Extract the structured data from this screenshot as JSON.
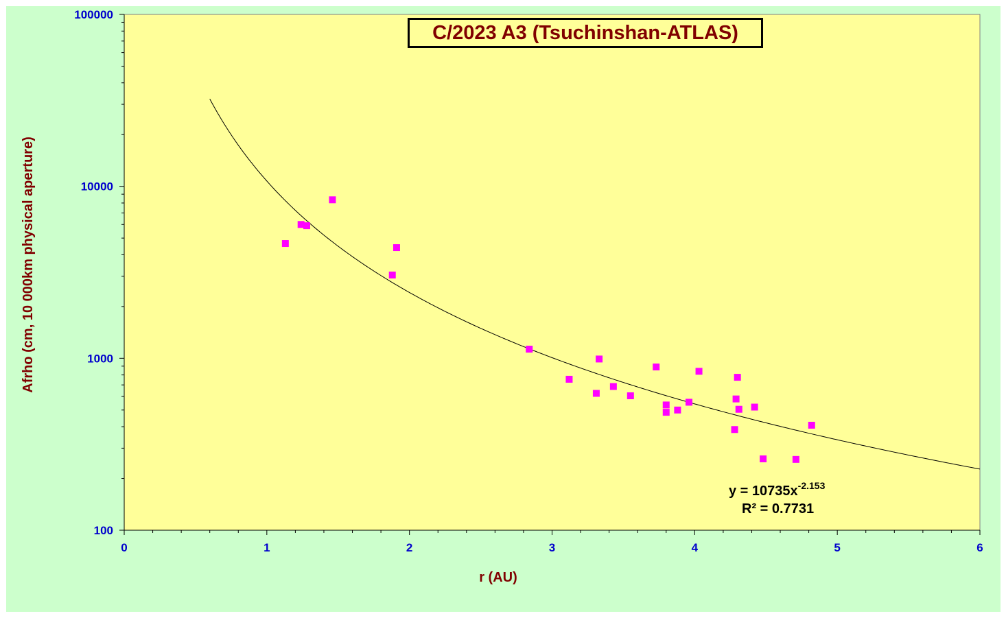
{
  "chart_data": {
    "type": "scatter",
    "title": "C/2023 A3 (Tsuchinshan-ATLAS)",
    "xlabel": "r (AU)",
    "ylabel": "Afrho (cm, 10 000km physical  aperture)",
    "xlim": [
      0,
      6
    ],
    "ylim": [
      100,
      100000
    ],
    "y_scale": "log",
    "x_ticks": [
      "0",
      "1",
      "2",
      "3",
      "4",
      "5",
      "6"
    ],
    "y_ticks": [
      "100",
      "1000",
      "10000",
      "100000"
    ],
    "grid": false,
    "series": [
      {
        "points": [
          [
            1.13,
            4650
          ],
          [
            1.24,
            6000
          ],
          [
            1.28,
            5900
          ],
          [
            1.46,
            8350
          ],
          [
            1.88,
            3050
          ],
          [
            1.91,
            4400
          ],
          [
            2.84,
            1130
          ],
          [
            3.12,
            755
          ],
          [
            3.31,
            625
          ],
          [
            3.33,
            990
          ],
          [
            3.43,
            685
          ],
          [
            3.55,
            605
          ],
          [
            3.73,
            890
          ],
          [
            3.8,
            535
          ],
          [
            3.8,
            485
          ],
          [
            3.88,
            500
          ],
          [
            3.96,
            555
          ],
          [
            4.03,
            840
          ],
          [
            4.28,
            385
          ],
          [
            4.29,
            580
          ],
          [
            4.3,
            775
          ],
          [
            4.31,
            505
          ],
          [
            4.42,
            520
          ],
          [
            4.48,
            260
          ],
          [
            4.71,
            258
          ],
          [
            4.82,
            408
          ]
        ]
      }
    ],
    "trendline": {
      "type": "power",
      "coefficient": 10735,
      "exponent": -2.153,
      "x_start": 0.6,
      "x_end": 6
    },
    "equation": {
      "main": "y = 10735x",
      "exponent": "-2.153",
      "r2": "R² = 0.7731"
    },
    "colors": {
      "background": "#ccffcc",
      "plot_area": "#ffff99",
      "marker": "#ff00ff",
      "axis_title": "#800000",
      "tick_label": "#0000cc"
    }
  }
}
